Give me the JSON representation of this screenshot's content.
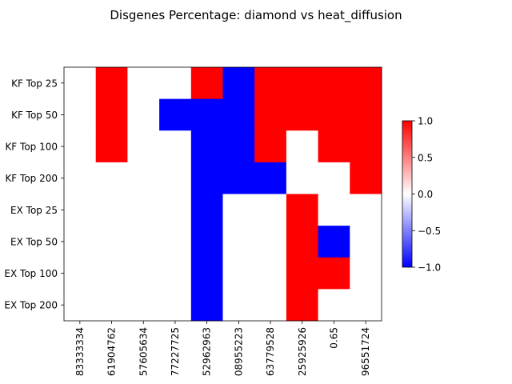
{
  "chart_data": {
    "type": "heatmap",
    "title": "Disgenes Percentage: diamond vs heat_diffusion",
    "row_labels": [
      "KF Top 25",
      "KF Top 50",
      "KF Top 100",
      "KF Top 200",
      "EX Top 25",
      "EX Top 50",
      "EX Top 100",
      "EX Top 200"
    ],
    "col_labels": [
      "83333334",
      "61904762",
      "57605634",
      "77227725",
      "52962963",
      "08955223",
      "63779528",
      "25925926",
      "0.65",
      "96551724"
    ],
    "values": [
      [
        0,
        1,
        0,
        0,
        1,
        -1,
        1,
        1,
        1,
        1
      ],
      [
        0,
        1,
        0,
        -1,
        -1,
        -1,
        1,
        1,
        1,
        1
      ],
      [
        0,
        1,
        0,
        0,
        -1,
        -1,
        1,
        0,
        1,
        1
      ],
      [
        0,
        0,
        0,
        0,
        -1,
        -1,
        -1,
        0,
        0,
        1
      ],
      [
        0,
        0,
        0,
        0,
        -1,
        0,
        0,
        1,
        0,
        0
      ],
      [
        0,
        0,
        0,
        0,
        -1,
        0,
        0,
        1,
        -1,
        0
      ],
      [
        0,
        0,
        0,
        0,
        -1,
        0,
        0,
        1,
        1,
        0
      ],
      [
        0,
        0,
        0,
        0,
        -1,
        0,
        0,
        1,
        0,
        0
      ]
    ],
    "colormap": [
      "#0000ff",
      "#ffffff",
      "#ff0000"
    ],
    "vmin": -1,
    "vmax": 1,
    "colorbar_ticks": [
      "1.0",
      "0.5",
      "0.0",
      "−0.5",
      "−1.0"
    ],
    "colorbar_tick_values": [
      1.0,
      0.5,
      0.0,
      -0.5,
      -1.0
    ]
  }
}
